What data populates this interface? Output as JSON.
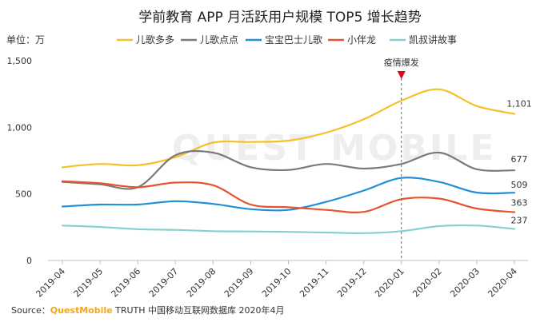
{
  "colors": {
    "儿歌多多": "#f5c12a",
    "儿歌点点": "#7a7a7a",
    "宝宝巴士儿歌": "#1f8fd6",
    "小伴龙": "#e8522e",
    "凯叔讲故事": "#86d1d0",
    "annotation": "#e60012"
  },
  "watermark": "QUEST MOBILE",
  "source": {
    "prefix": "Source：",
    "brand": "QuestMobile",
    "suffix": " TRUTH 中国移动互联网数据库 2020年4月"
  },
  "chart_data": {
    "type": "line",
    "title": "学前教育 APP 月活跃用户规模 TOP5 增长趋势",
    "unit_label": "单位：万",
    "categories": [
      "2019-04",
      "2019-05",
      "2019-06",
      "2019-07",
      "2019-08",
      "2019-09",
      "2019-10",
      "2019-11",
      "2019-12",
      "2020-01",
      "2020-02",
      "2020-03",
      "2020-04"
    ],
    "ylim": [
      0,
      1500
    ],
    "yticks": [
      "0",
      "500",
      "1,000",
      "1,500"
    ],
    "legend_position": "top",
    "grid": false,
    "smooth": true,
    "series": [
      {
        "name": "儿歌多多",
        "values": [
          700,
          725,
          715,
          775,
          885,
          890,
          900,
          960,
          1060,
          1200,
          1285,
          1160,
          1101
        ],
        "end_label": "1,101"
      },
      {
        "name": "儿歌点点",
        "values": [
          590,
          572,
          550,
          790,
          810,
          700,
          680,
          725,
          690,
          725,
          810,
          685,
          677
        ],
        "end_label": "677"
      },
      {
        "name": "宝宝巴士儿歌",
        "values": [
          405,
          420,
          420,
          445,
          425,
          385,
          380,
          440,
          525,
          620,
          590,
          510,
          509
        ],
        "end_label": "509"
      },
      {
        "name": "小伴龙",
        "values": [
          595,
          580,
          550,
          585,
          565,
          420,
          400,
          380,
          365,
          460,
          465,
          390,
          363
        ],
        "end_label": "363"
      },
      {
        "name": "凯叔讲故事",
        "values": [
          262,
          252,
          235,
          230,
          220,
          218,
          215,
          210,
          205,
          220,
          258,
          262,
          237
        ],
        "end_label": "237"
      }
    ],
    "annotations": [
      {
        "category": "2020-01",
        "text": "疫情爆发"
      }
    ]
  }
}
